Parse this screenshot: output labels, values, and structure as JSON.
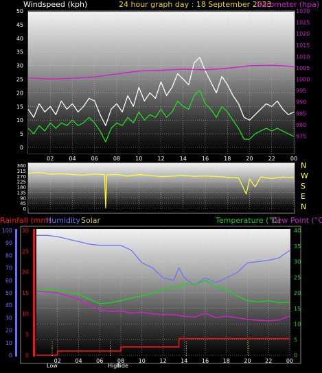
{
  "header": {
    "left": "Windspeed (kph)",
    "center": "24 hour graph day : 18 September 2023",
    "right": "Barometer (hpa)"
  },
  "labels": {
    "rainfall": "Rainfall (mm)",
    "humidity": "Humidity",
    "solar": "Solar",
    "temperature": "Temperature (°C)",
    "dewpoint": "Dew Point (°C)",
    "low": "Low",
    "high": "High",
    "tide": "Tide"
  },
  "colors": {
    "windspeed": "#ffffff",
    "windspeed_avg": "#20e020",
    "barometer": "#d020d0",
    "direction": "#ffff30",
    "rain": "#ff1010",
    "humidity": "#7070ff",
    "temperature": "#20d020",
    "dewpoint": "#d020d0",
    "solar": "#c8c850",
    "grid": "#cccccc"
  },
  "compass": [
    "N",
    "W",
    "S",
    "E",
    "N"
  ],
  "chart_data": [
    {
      "type": "line",
      "title": "24 hour graph day : 18 September 2023",
      "ylabel": "Windspeed (kph)",
      "y2label": "Barometer (hpa)",
      "xlim": [
        0,
        24
      ],
      "ylim": [
        0,
        50
      ],
      "y2lim": [
        970,
        1030
      ],
      "x_ticks": [
        "02",
        "04",
        "06",
        "08",
        "10",
        "12",
        "14",
        "16",
        "18",
        "20",
        "22",
        "00"
      ],
      "y_ticks": [
        0,
        5,
        10,
        15,
        20,
        25,
        30,
        35,
        40,
        45,
        50
      ],
      "y2_ticks": [
        975,
        980,
        985,
        990,
        995,
        1000,
        1005,
        1010,
        1015,
        1020,
        1025,
        1030
      ],
      "series": [
        {
          "name": "Windspeed (kph)",
          "role": "gust",
          "x": [
            0,
            0.5,
            1,
            1.5,
            2,
            2.5,
            3,
            3.5,
            4,
            4.5,
            5,
            5.5,
            6,
            6.5,
            7,
            7.5,
            8,
            8.5,
            9,
            9.5,
            10,
            10.5,
            11,
            11.5,
            12,
            12.5,
            13,
            13.5,
            14,
            14.5,
            15,
            15.5,
            16,
            16.5,
            17,
            17.5,
            18,
            18.5,
            19,
            19.5,
            20,
            20.5,
            21,
            21.5,
            22,
            22.5,
            23,
            23.5,
            24
          ],
          "values": [
            14,
            11,
            16,
            13,
            15,
            12,
            17,
            14,
            16,
            13,
            15,
            18,
            17,
            12,
            8,
            14,
            16,
            13,
            19,
            15,
            22,
            17,
            20,
            18,
            24,
            19,
            22,
            27,
            25,
            23,
            31,
            33,
            28,
            24,
            20,
            26,
            23,
            19,
            16,
            11,
            10,
            12,
            14,
            16,
            15,
            17,
            14,
            12,
            13
          ]
        },
        {
          "name": "Average windspeed",
          "role": "average",
          "x": [
            0,
            0.5,
            1,
            1.5,
            2,
            2.5,
            3,
            3.5,
            4,
            4.5,
            5,
            5.5,
            6,
            6.5,
            7,
            7.5,
            8,
            8.5,
            9,
            9.5,
            10,
            10.5,
            11,
            11.5,
            12,
            12.5,
            13,
            13.5,
            14,
            14.5,
            15,
            15.5,
            16,
            16.5,
            17,
            17.5,
            18,
            18.5,
            19,
            19.5,
            20,
            20.5,
            21,
            21.5,
            22,
            22.5,
            23,
            23.5,
            24
          ],
          "values": [
            7,
            5,
            8,
            6,
            9,
            7,
            9,
            8,
            10,
            8,
            9,
            11,
            9,
            6,
            2,
            7,
            9,
            8,
            11,
            9,
            13,
            10,
            12,
            11,
            14,
            11,
            13,
            17,
            15,
            14,
            19,
            21,
            16,
            14,
            11,
            15,
            13,
            10,
            7,
            3,
            3,
            5,
            6,
            7,
            6,
            7,
            6,
            5,
            4
          ]
        },
        {
          "name": "Barometer (hpa)",
          "axis": "right",
          "x": [
            0,
            2,
            4,
            6,
            8,
            10,
            12,
            14,
            16,
            18,
            20,
            22,
            24
          ],
          "values": [
            1000.5,
            1000.1,
            1000.4,
            1001.0,
            1002.3,
            1003.6,
            1003.9,
            1004.4,
            1004.1,
            1004.8,
            1005.9,
            1006.1,
            1005.6
          ]
        }
      ]
    },
    {
      "type": "line",
      "ylabel": "Wind direction",
      "xlim": [
        0,
        24
      ],
      "ylim": [
        0,
        360
      ],
      "x_ticks": [
        "02",
        "04",
        "06",
        "08",
        "10",
        "12",
        "14",
        "16",
        "18",
        "20",
        "22",
        "00"
      ],
      "y_ticks": [
        0,
        45,
        90,
        135,
        180,
        225,
        270,
        315,
        360
      ],
      "series": [
        {
          "name": "Wind direction",
          "x": [
            0,
            1,
            2,
            3,
            4,
            5,
            6,
            6.9,
            7.0,
            7.1,
            8,
            9,
            10,
            11,
            12,
            13,
            14,
            15,
            16,
            17,
            18,
            19,
            19.7,
            20,
            20.5,
            21,
            22,
            23,
            24
          ],
          "values": [
            292,
            300,
            286,
            290,
            283,
            278,
            288,
            282,
            5,
            280,
            283,
            270,
            282,
            275,
            265,
            270,
            276,
            268,
            271,
            266,
            260,
            255,
            120,
            245,
            180,
            262,
            250,
            262,
            258
          ]
        }
      ]
    },
    {
      "type": "line",
      "xlim": [
        0,
        24
      ],
      "ylim": [
        0,
        40
      ],
      "x_ticks": [
        "02",
        "04",
        "06",
        "08",
        "10",
        "12",
        "14",
        "16",
        "18",
        "20",
        "22",
        "00"
      ],
      "y_ticks": [
        0,
        5,
        10,
        15,
        20,
        25,
        30,
        35,
        40
      ],
      "humidity_ticks": [
        0,
        10,
        20,
        30,
        40,
        50,
        60,
        70,
        80,
        90,
        100
      ],
      "rain_ticks": [
        0,
        5,
        10,
        15,
        20,
        25,
        30
      ],
      "series": [
        {
          "name": "Temperature (°C)",
          "x": [
            0,
            2,
            4,
            5,
            6,
            7,
            8,
            9,
            10,
            11,
            12,
            13,
            13.5,
            14,
            15,
            16,
            17,
            18,
            19,
            20,
            21,
            22,
            23,
            24
          ],
          "values": [
            21.0,
            20.8,
            19.5,
            18.0,
            16.5,
            16.8,
            17.5,
            18.3,
            19.0,
            19.8,
            21.0,
            21.8,
            21.5,
            23.0,
            22.5,
            24.0,
            22.0,
            21.0,
            19.0,
            17.5,
            17.0,
            17.5,
            16.8,
            17.0
          ]
        },
        {
          "name": "Dew Point (°C)",
          "x": [
            0,
            2,
            4,
            5,
            6,
            7,
            8,
            9,
            10,
            11,
            12,
            13,
            14,
            15,
            16,
            17,
            18,
            19,
            20,
            21,
            22,
            23,
            24
          ],
          "values": [
            20.5,
            20.0,
            18.0,
            16.0,
            14.5,
            14.0,
            14.2,
            13.5,
            13.8,
            13.2,
            13.0,
            13.0,
            12.5,
            12.2,
            13.5,
            12.0,
            12.5,
            12.0,
            11.5,
            11.2,
            11.0,
            11.3,
            12.5
          ]
        },
        {
          "name": "Humidity",
          "axis": "humidity",
          "x": [
            0,
            1,
            2,
            3,
            4,
            5,
            6,
            7,
            8,
            9,
            10,
            11,
            12,
            13,
            13.5,
            14,
            15,
            16,
            17,
            18,
            19,
            20,
            21,
            22,
            23,
            24
          ],
          "values": [
            96,
            96,
            95,
            93,
            91,
            89,
            88,
            88,
            88,
            84,
            74,
            70,
            62,
            60,
            70,
            62,
            56,
            62,
            58,
            62,
            66,
            74,
            75,
            76,
            78,
            84
          ]
        },
        {
          "name": "Rainfall (mm)",
          "axis": "rain",
          "x": [
            0,
            1.6,
            2.0,
            7.8,
            8.0,
            13.3,
            13.5,
            24
          ],
          "values": [
            0,
            0,
            1,
            1,
            2,
            2,
            4,
            4
          ]
        }
      ],
      "tide_markers": {
        "low": [
          1.5,
          14.2
        ],
        "high": [
          7.0,
          20.1
        ]
      }
    }
  ]
}
